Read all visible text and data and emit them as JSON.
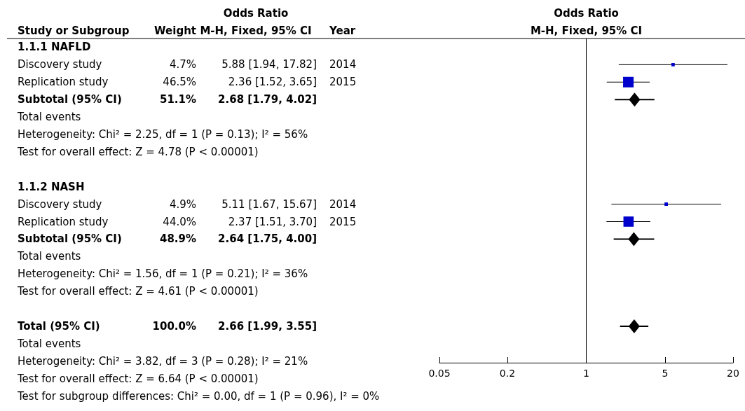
{
  "chart_data": {
    "type": "scatter",
    "orientation": "horizontal",
    "title": "Odds Ratio",
    "subtitle": "M-H, Fixed, 95% CI",
    "categories": [
      "1.1.1 NAFLD",
      "Discovery study",
      "Replication study",
      "Subtotal (95% CI)",
      "Total events",
      "Heterogeneity: Chi² = 2.25, df = 1 (P = 0.13); I² = 56%",
      "Test for overall effect: Z = 4.78 (P < 0.00001)",
      null,
      "1.1.2 NASH",
      "Discovery study",
      "Replication study",
      "Subtotal (95% CI)",
      "Total events",
      "Heterogeneity: Chi² = 1.56, df = 1 (P = 0.21); I² = 36%",
      "Test for overall effect: Z = 4.61 (P < 0.00001)",
      null,
      "Total (95% CI)",
      "Total events",
      "Heterogeneity: Chi² = 3.82, df = 3 (P = 0.28); I² = 21%",
      "Test for overall effect: Z = 6.64 (P < 0.00001)",
      "Test for subgroup differences: Chi² = 0.00, df = 1 (P = 0.96), I² = 0%"
    ],
    "series": [
      {
        "type": "bubble",
        "marker": "square",
        "color": "#0000cc",
        "values": [
          null,
          5.88,
          2.36,
          null,
          null,
          null,
          null,
          null,
          null,
          5.11,
          2.37,
          null,
          null,
          null,
          null,
          null,
          null,
          null,
          null,
          null,
          null
        ],
        "errors": [
          null,
          [
            1.94,
            17.82
          ],
          [
            1.52,
            3.65
          ],
          null,
          null,
          null,
          null,
          null,
          null,
          [
            1.67,
            15.67
          ],
          [
            1.51,
            3.7
          ],
          null,
          null,
          null,
          null,
          null,
          null,
          null,
          null,
          null,
          null
        ],
        "sizes": [
          null,
          0.101,
          1,
          null,
          null,
          null,
          null,
          null,
          null,
          0.105,
          0.946,
          null,
          null,
          null,
          null,
          null,
          null,
          null,
          null,
          null,
          null
        ],
        "value_labels": [
          null,
          "5.88 [1.94, 17.82]",
          "2.36 [1.52, 3.65]",
          null,
          null,
          null,
          null,
          null,
          null,
          "5.11 [1.67, 15.67]",
          "2.37 [1.51, 3.70]",
          null,
          null,
          null,
          null,
          null,
          null,
          null,
          null,
          null,
          null
        ]
      },
      {
        "type": "scatter",
        "marker": "diamond",
        "color": "#000000",
        "values": [
          null,
          null,
          null,
          2.68,
          null,
          null,
          null,
          null,
          null,
          null,
          null,
          2.64,
          null,
          null,
          null,
          null,
          2.66,
          null,
          null,
          null,
          null
        ],
        "errors": [
          null,
          null,
          null,
          [
            1.79,
            4.02
          ],
          null,
          null,
          null,
          null,
          null,
          null,
          null,
          [
            1.75,
            4.0
          ],
          null,
          null,
          null,
          null,
          [
            1.99,
            3.55
          ],
          null,
          null,
          null,
          null
        ]
      }
    ],
    "xlim": [
      0.05,
      20
    ],
    "xticks": [
      0.05,
      0.2,
      1,
      5,
      20
    ],
    "log": "x",
    "grid": false,
    "ref_lines": [
      {
        "axis": "x",
        "value": 1,
        "color": "#000000"
      }
    ],
    "annotations": [
      "Study or Subgroup",
      "Weight",
      "Odds Ratio",
      "M-H, Fixed, 95% CI",
      "Year",
      "4.7%",
      "2014",
      "46.5%",
      "2015",
      "51.1%",
      "2.68 [1.79, 4.02]",
      "4.9%",
      "2014",
      "44.0%",
      "2015",
      "48.9%",
      "2.64 [1.75, 4.00]",
      "100.0%",
      "2.66 [1.99, 3.55]"
    ]
  }
}
